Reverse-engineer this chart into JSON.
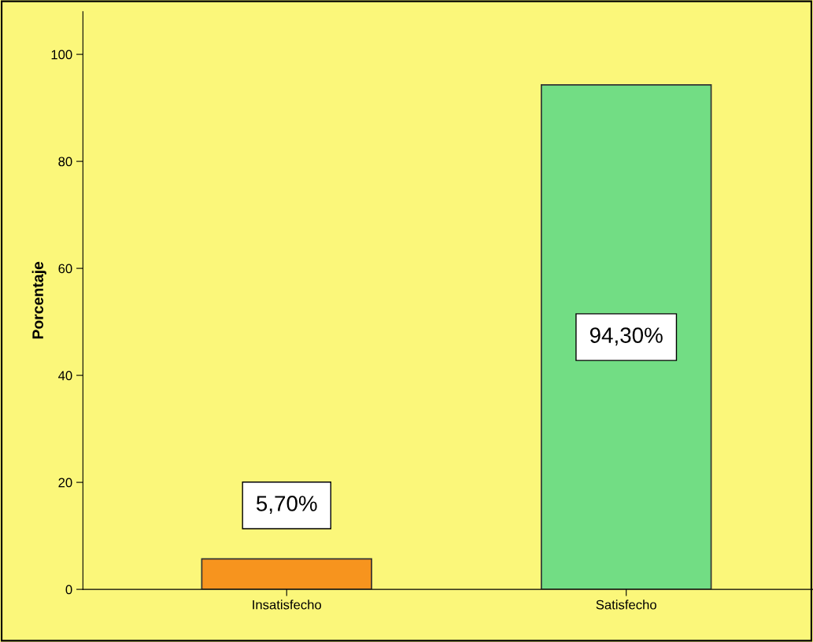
{
  "chart_data": {
    "type": "bar",
    "ylabel": "Porcentaje",
    "categories": [
      "Insatisfecho",
      "Satisfecho"
    ],
    "values": [
      5.7,
      94.3
    ],
    "colors": [
      "#f7941e",
      "#72dd84"
    ],
    "value_labels": [
      "5,70%",
      "94,30%"
    ],
    "ylim": [
      0,
      108
    ],
    "yticks": [
      0,
      20,
      40,
      60,
      80,
      100
    ],
    "grid": false,
    "legend": false
  }
}
